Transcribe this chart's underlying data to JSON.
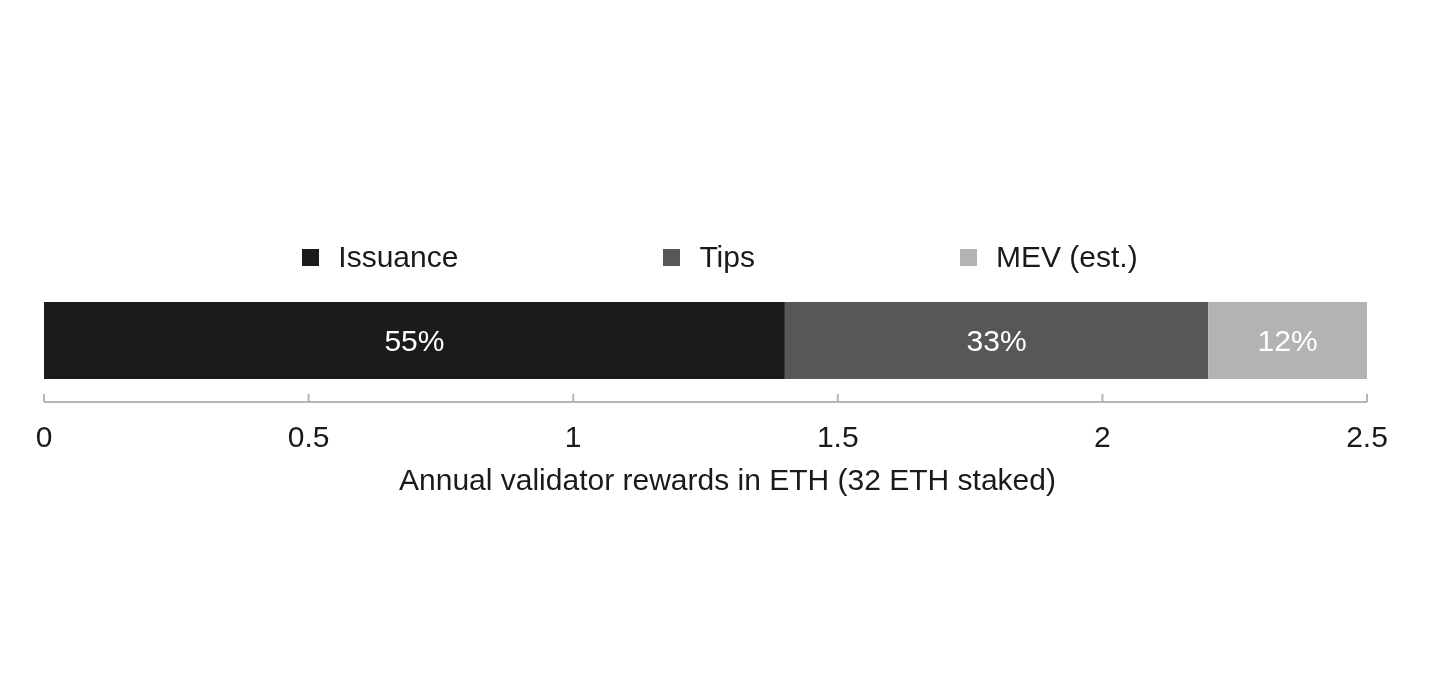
{
  "chart_data": {
    "type": "bar",
    "orientation": "horizontal",
    "stacked": true,
    "categories": [
      null
    ],
    "series": [
      {
        "name": "Issuance",
        "color": "#1b1b19",
        "values": [
          1.4
        ]
      },
      {
        "name": "Tips",
        "color": "#575757",
        "values": [
          0.8
        ]
      },
      {
        "name": "MEV (est.)",
        "color": "#b3b3b3",
        "values": [
          0.3
        ]
      }
    ],
    "annotations": [
      "55%",
      "33%",
      "12%"
    ],
    "xlabel": "Annual validator rewards in ETH (32 ETH staked)",
    "xlim": [
      0,
      2.5
    ],
    "xticks": [
      0,
      0.5,
      1,
      1.5,
      2,
      2.5
    ],
    "legend": "top"
  }
}
